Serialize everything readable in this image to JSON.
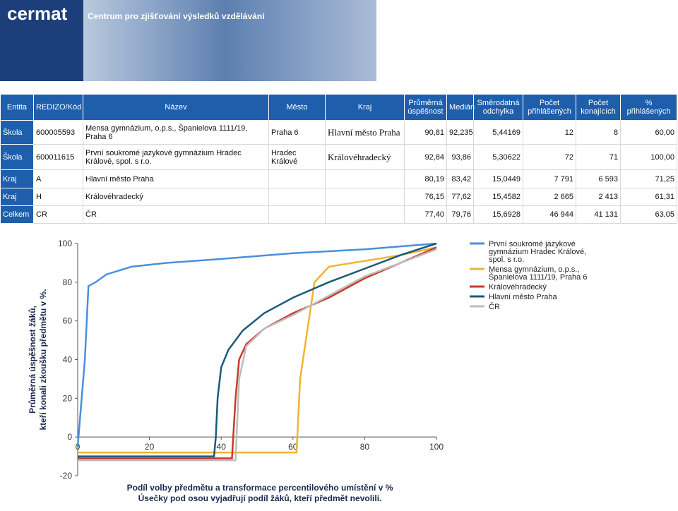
{
  "header": {
    "logo": "cermat",
    "subtitle": "Centrum pro zjišťování výsledků vzdělávání"
  },
  "table": {
    "columns": [
      "Entita",
      "REDIZO/Kód",
      "Název",
      "Město",
      "Kraj",
      "Průměrná úspěšnost",
      "Medián",
      "Směrodatná odchylka",
      "Počet přihlášených",
      "Počet konajících",
      "% přihlášených"
    ],
    "rows": [
      [
        "Škola",
        "600005593",
        "Mensa gymnázium, o.p.s., Španielova 1111/19, Praha 6",
        "Praha 6",
        "Hlavní město Praha",
        "90,81",
        "92,235",
        "5,44169",
        "12",
        "8",
        "60,00"
      ],
      [
        "Škola",
        "600011615",
        "První soukromé jazykové gymnázium Hradec Králové, spol. s r.o.",
        "Hradec Králové",
        "Královéhradecký",
        "92,84",
        "93,86",
        "5,30622",
        "72",
        "71",
        "100,00"
      ],
      [
        "Kraj",
        "A",
        "Hlavní město Praha",
        null,
        null,
        "80,19",
        "83,42",
        "15,0449",
        "7 791",
        "6 593",
        "71,25"
      ],
      [
        "Kraj",
        "H",
        "Královéhradecký",
        null,
        null,
        "76,15",
        "77,62",
        "15,4582",
        "2 665",
        "2 413",
        "61,31"
      ],
      [
        "Celkem",
        "CR",
        "ČR",
        null,
        null,
        "77,40",
        "79,76",
        "15,6928",
        "46 944",
        "41 131",
        "63,05"
      ]
    ]
  },
  "chart": {
    "type": "line",
    "xlabel": [
      "Podíl volby předmětu a transformace percentilového umístění v %",
      "Úsečky pod osou vyjadřují podíl žáků, kteří předmět nevolili."
    ],
    "ylabel": [
      "Průměrná úspěšnost žáků,",
      "kteří konali zkoušku předmětu v %."
    ],
    "xlim": [
      0,
      100
    ],
    "ylim": [
      -20,
      100
    ],
    "xticks": [
      0,
      20,
      40,
      60,
      80,
      100
    ],
    "yticks": [
      -20,
      0,
      20,
      40,
      60,
      80,
      100
    ],
    "grid": false,
    "series": [
      {
        "name": "První soukromé jazykové gymnázium Hradec Králové, spol. s r.o.",
        "color": "#4a8fdc",
        "x": [
          0,
          2,
          3,
          5,
          8,
          15,
          25,
          40,
          60,
          80,
          100
        ],
        "values": [
          -5,
          40,
          78,
          80,
          84,
          88,
          90,
          92,
          95,
          97,
          100
        ]
      },
      {
        "name": "Mensa gymnázium, o.p.s., Španielova 1111/19, Praha 6",
        "color": "#f2b233",
        "x": [
          0,
          61,
          62,
          66,
          70,
          80,
          90,
          100
        ],
        "values": [
          -8,
          -8,
          30,
          80,
          88,
          91,
          94,
          98
        ]
      },
      {
        "name": "Královéhradecký",
        "color": "#c8392b",
        "x": [
          0,
          43,
          44,
          45,
          47,
          52,
          60,
          70,
          80,
          90,
          100
        ],
        "values": [
          -11,
          -11,
          20,
          40,
          48,
          56,
          64,
          72,
          82,
          90,
          98
        ]
      },
      {
        "name": "Hlavní město Praha",
        "color": "#1b5b78",
        "x": [
          0,
          38,
          38.5,
          39,
          40,
          42,
          46,
          52,
          60,
          70,
          80,
          90,
          100
        ],
        "values": [
          -10,
          -10,
          0,
          20,
          36,
          45,
          55,
          64,
          72,
          80,
          87,
          94,
          100
        ]
      },
      {
        "name": "ČR",
        "color": "#bdbdbd",
        "x": [
          0,
          44,
          45,
          47,
          52,
          60,
          70,
          80,
          90,
          100
        ],
        "values": [
          -12,
          -12,
          30,
          47,
          56,
          63,
          73,
          83,
          90,
          97
        ]
      }
    ]
  }
}
